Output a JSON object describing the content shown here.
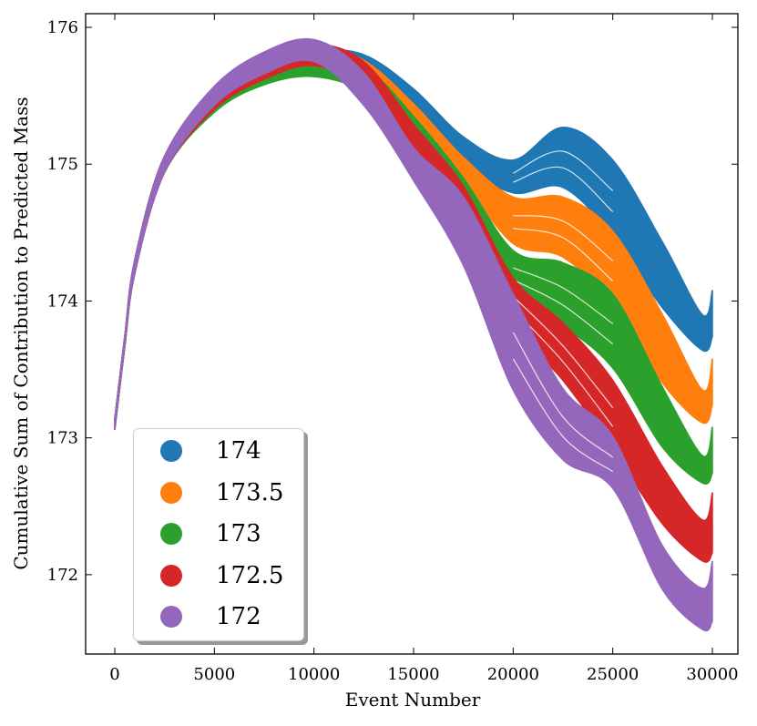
{
  "chart_data": {
    "type": "area",
    "title": "",
    "xlabel": "Event Number",
    "ylabel": "Cumulative Sum of Contribution to Predicted Mass",
    "xlim": [
      -1463,
      31280
    ],
    "ylim": [
      171.42,
      176.1
    ],
    "xticks": [
      0,
      5000,
      10000,
      15000,
      20000,
      25000,
      30000
    ],
    "yticks": [
      172,
      173,
      174,
      175,
      176
    ],
    "grid": false,
    "legend_placement": "lower-left",
    "x": [
      0,
      500,
      1000,
      2500,
      5000,
      7500,
      10000,
      12500,
      15000,
      17500,
      20000,
      22500,
      25000,
      27500,
      29500,
      30000
    ],
    "series": [
      {
        "name": "174",
        "color": "#1f77b4",
        "center": [
          173.1,
          173.7,
          174.25,
          175.0,
          175.45,
          175.67,
          175.75,
          175.72,
          175.45,
          175.1,
          174.91,
          175.05,
          174.75,
          174.19,
          173.77,
          173.91
        ],
        "spread": [
          0.04,
          0.04,
          0.05,
          0.06,
          0.07,
          0.08,
          0.08,
          0.08,
          0.1,
          0.1,
          0.12,
          0.22,
          0.28,
          0.24,
          0.13,
          0.17
        ]
      },
      {
        "name": "173.5",
        "color": "#ff7f0e",
        "center": [
          173.1,
          173.7,
          174.25,
          175.0,
          175.47,
          175.7,
          175.78,
          175.68,
          175.35,
          174.96,
          174.59,
          174.54,
          174.24,
          173.65,
          173.23,
          173.41
        ],
        "spread": [
          0.04,
          0.04,
          0.05,
          0.06,
          0.07,
          0.08,
          0.08,
          0.08,
          0.09,
          0.09,
          0.17,
          0.22,
          0.27,
          0.25,
          0.12,
          0.17
        ]
      },
      {
        "name": "173",
        "color": "#2ca02c",
        "center": [
          173.1,
          173.7,
          174.25,
          175.0,
          175.45,
          175.66,
          175.72,
          175.62,
          175.25,
          174.8,
          174.21,
          174.05,
          173.78,
          173.15,
          172.77,
          172.91
        ],
        "spread": [
          0.04,
          0.04,
          0.05,
          0.06,
          0.07,
          0.08,
          0.08,
          0.1,
          0.1,
          0.1,
          0.16,
          0.23,
          0.27,
          0.22,
          0.1,
          0.17
        ]
      },
      {
        "name": "172.5",
        "color": "#d62728",
        "center": [
          173.1,
          173.7,
          174.25,
          175.0,
          175.47,
          175.7,
          175.8,
          175.65,
          175.15,
          174.7,
          174.0,
          173.63,
          173.17,
          172.58,
          172.25,
          172.38
        ],
        "spread": [
          0.04,
          0.04,
          0.05,
          0.06,
          0.07,
          0.08,
          0.08,
          0.1,
          0.14,
          0.14,
          0.17,
          0.21,
          0.25,
          0.21,
          0.15,
          0.22
        ]
      },
      {
        "name": "172",
        "color": "#9467bd",
        "center": [
          173.1,
          173.7,
          174.25,
          175.0,
          175.5,
          175.74,
          175.83,
          175.55,
          175.0,
          174.51,
          173.7,
          173.1,
          172.82,
          172.05,
          171.75,
          171.88
        ],
        "spread": [
          0.04,
          0.04,
          0.05,
          0.06,
          0.07,
          0.08,
          0.08,
          0.12,
          0.12,
          0.25,
          0.35,
          0.26,
          0.19,
          0.16,
          0.15,
          0.22
        ]
      }
    ]
  }
}
